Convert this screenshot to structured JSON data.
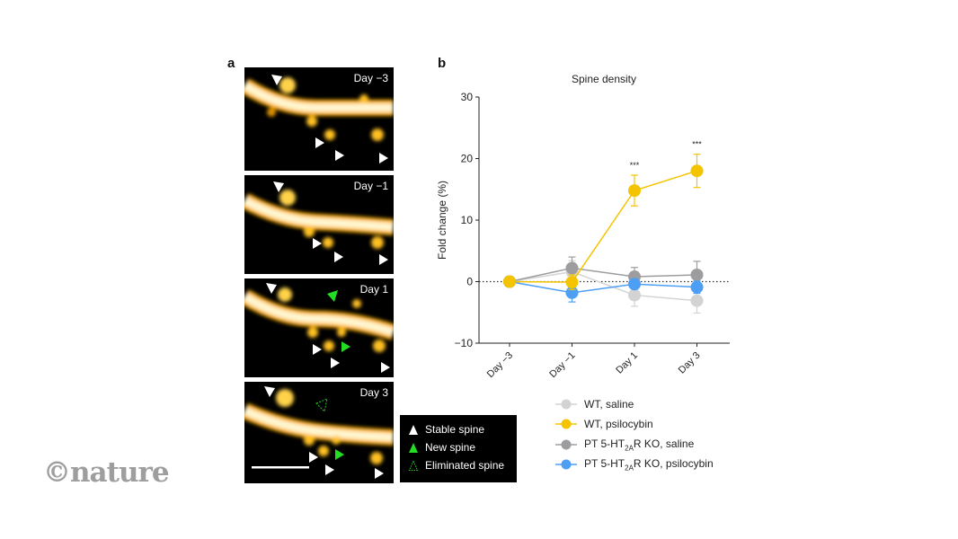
{
  "panel_a": {
    "letter": "a",
    "images": [
      {
        "label": "Day −3"
      },
      {
        "label": "Day −1"
      },
      {
        "label": "Day 1"
      },
      {
        "label": "Day 3"
      }
    ],
    "legend": [
      {
        "label": "Stable spine",
        "marker": "white-filled-triangle"
      },
      {
        "label": "New spine",
        "marker": "green-filled-triangle"
      },
      {
        "label": "Eliminated spine",
        "marker": "green-dotted-outline-triangle"
      }
    ],
    "colors": {
      "stable": "#ffffff",
      "new": "#22dd22",
      "eliminated": "#22cc22",
      "dendrite": "#ffb300"
    }
  },
  "panel_b": {
    "letter": "b"
  },
  "watermark": "©nature",
  "chart_data": {
    "type": "line",
    "title": "Spine density",
    "xlabel": "",
    "ylabel": "Fold change (%)",
    "categories": [
      "Day −3",
      "Day −1",
      "Day 1",
      "Day 3"
    ],
    "ylim": [
      -10,
      30
    ],
    "yticks": [
      -10,
      0,
      10,
      20,
      30
    ],
    "reference_line": {
      "y": 0,
      "style": "dotted"
    },
    "legend_position": "below",
    "series": [
      {
        "name": "WT, saline",
        "color": "#d3d3d3",
        "values": [
          0,
          1.6,
          -2.2,
          -3.1
        ],
        "errors": [
          0,
          1.8,
          1.8,
          2.0
        ]
      },
      {
        "name": "WT, psilocybin",
        "color": "#f5c400",
        "values": [
          0,
          -0.1,
          14.8,
          18.0
        ],
        "errors": [
          0,
          1.2,
          2.5,
          2.7
        ],
        "significance": [
          "",
          "",
          "***",
          "***"
        ]
      },
      {
        "name": "PT 5-HT2AR KO, saline",
        "color": "#9d9d9f",
        "values": [
          0,
          2.2,
          0.8,
          1.1
        ],
        "errors": [
          0,
          1.8,
          1.5,
          2.2
        ]
      },
      {
        "name": "PT 5-HT2AR KO, psilocybin",
        "color": "#4d9ef5",
        "values": [
          0,
          -1.8,
          -0.4,
          -0.9
        ],
        "errors": [
          0,
          1.5,
          0.8,
          1.0
        ]
      }
    ],
    "legend_labels": [
      {
        "pre": "WT, saline",
        "sub": "",
        "post": ""
      },
      {
        "pre": "WT, psilocybin",
        "sub": "",
        "post": ""
      },
      {
        "pre": "PT 5-HT",
        "sub": "2A",
        "post": "R KO, saline"
      },
      {
        "pre": "PT 5-HT",
        "sub": "2A",
        "post": "R KO, psilocybin"
      }
    ]
  }
}
